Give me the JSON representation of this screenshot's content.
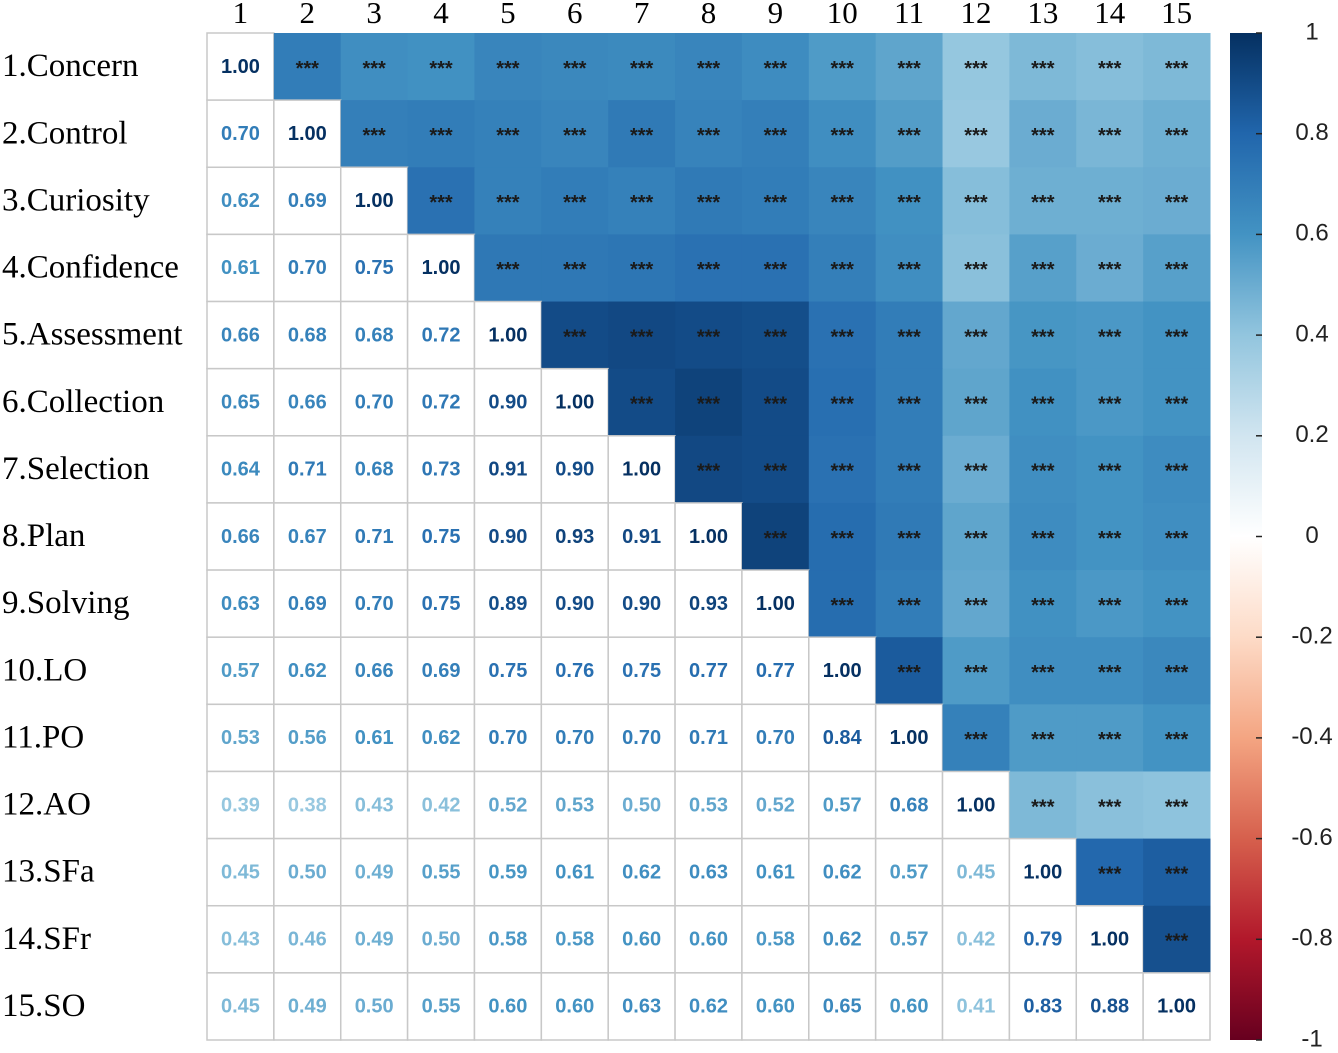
{
  "chart_data": {
    "type": "heatmap",
    "columns": [
      "1",
      "2",
      "3",
      "4",
      "5",
      "6",
      "7",
      "8",
      "9",
      "10",
      "11",
      "12",
      "13",
      "14",
      "15"
    ],
    "rows": [
      "1.Concern",
      "2.Control",
      "3.Curiosity",
      "4.Confidence",
      "5.Assessment",
      "6.Collection",
      "7.Selection",
      "8.Plan",
      "9.Solving",
      "10.LO",
      "11.PO",
      "12.AO",
      "13.SFa",
      "14.SFr",
      "15.SO"
    ],
    "values": [
      [
        1
      ],
      [
        0.7,
        1
      ],
      [
        0.62,
        0.69,
        1
      ],
      [
        0.61,
        0.7,
        0.75,
        1
      ],
      [
        0.66,
        0.68,
        0.68,
        0.72,
        1
      ],
      [
        0.65,
        0.66,
        0.7,
        0.72,
        0.9,
        1
      ],
      [
        0.64,
        0.71,
        0.68,
        0.73,
        0.91,
        0.9,
        1
      ],
      [
        0.66,
        0.67,
        0.71,
        0.75,
        0.9,
        0.93,
        0.91,
        1
      ],
      [
        0.63,
        0.69,
        0.7,
        0.75,
        0.89,
        0.9,
        0.9,
        0.93,
        1
      ],
      [
        0.57,
        0.62,
        0.66,
        0.69,
        0.75,
        0.76,
        0.75,
        0.77,
        0.77,
        1
      ],
      [
        0.53,
        0.56,
        0.61,
        0.62,
        0.7,
        0.7,
        0.7,
        0.71,
        0.7,
        0.84,
        1
      ],
      [
        0.39,
        0.38,
        0.43,
        0.42,
        0.52,
        0.53,
        0.5,
        0.53,
        0.52,
        0.57,
        0.68,
        1
      ],
      [
        0.45,
        0.5,
        0.49,
        0.55,
        0.59,
        0.61,
        0.62,
        0.63,
        0.61,
        0.62,
        0.57,
        0.45,
        1
      ],
      [
        0.43,
        0.46,
        0.49,
        0.5,
        0.58,
        0.58,
        0.6,
        0.6,
        0.58,
        0.62,
        0.57,
        0.42,
        0.79,
        1
      ],
      [
        0.45,
        0.49,
        0.5,
        0.55,
        0.6,
        0.6,
        0.63,
        0.62,
        0.6,
        0.65,
        0.6,
        0.41,
        0.83,
        0.88,
        1
      ]
    ],
    "value_labels": [
      [
        "1.00"
      ],
      [
        "0.70",
        "1.00"
      ],
      [
        "0.62",
        "0.69",
        "1.00"
      ],
      [
        "0.61",
        "0.70",
        "0.75",
        "1.00"
      ],
      [
        "0.66",
        "0.68",
        "0.68",
        "0.72",
        "1.00"
      ],
      [
        "0.65",
        "0.66",
        "0.70",
        "0.72",
        "0.90",
        "1.00"
      ],
      [
        "0.64",
        "0.71",
        "0.68",
        "0.73",
        "0.91",
        "0.90",
        "1.00"
      ],
      [
        "0.66",
        "0.67",
        "0.71",
        "0.75",
        "0.90",
        "0.93",
        "0.91",
        "1.00"
      ],
      [
        "0.63",
        "0.69",
        "0.70",
        "0.75",
        "0.89",
        "0.90",
        "0.90",
        "0.93",
        "1.00"
      ],
      [
        "0.57",
        "0.62",
        "0.66",
        "0.69",
        "0.75",
        "0.76",
        "0.75",
        "0.77",
        "0.77",
        "1.00"
      ],
      [
        "0.53",
        "0.56",
        "0.61",
        "0.62",
        "0.70",
        "0.70",
        "0.70",
        "0.71",
        "0.70",
        "0.84",
        "1.00"
      ],
      [
        "0.39",
        "0.38",
        "0.43",
        "0.42",
        "0.52",
        "0.53",
        "0.50",
        "0.53",
        "0.52",
        "0.57",
        "0.68",
        "1.00"
      ],
      [
        "0.45",
        "0.50",
        "0.49",
        "0.55",
        "0.59",
        "0.61",
        "0.62",
        "0.63",
        "0.61",
        "0.62",
        "0.57",
        "0.45",
        "1.00"
      ],
      [
        "0.43",
        "0.46",
        "0.49",
        "0.50",
        "0.58",
        "0.58",
        "0.60",
        "0.60",
        "0.58",
        "0.62",
        "0.57",
        "0.42",
        "0.79",
        "1.00"
      ],
      [
        "0.45",
        "0.49",
        "0.50",
        "0.55",
        "0.60",
        "0.60",
        "0.63",
        "0.62",
        "0.60",
        "0.65",
        "0.60",
        "0.41",
        "0.83",
        "0.88",
        "1.00"
      ]
    ],
    "significance_label": "***",
    "colormap": [
      "#67001f",
      "#b2182b",
      "#d6604d",
      "#f4a582",
      "#fddbc7",
      "#ffffff",
      "#d1e5f0",
      "#92c5de",
      "#4393c3",
      "#2166ac",
      "#053061"
    ],
    "ylim": [
      -1,
      1
    ],
    "yticks": [
      1,
      0.8,
      0.6,
      0.4,
      0.2,
      0,
      -0.2,
      -0.4,
      -0.6,
      -0.8,
      -1
    ]
  }
}
